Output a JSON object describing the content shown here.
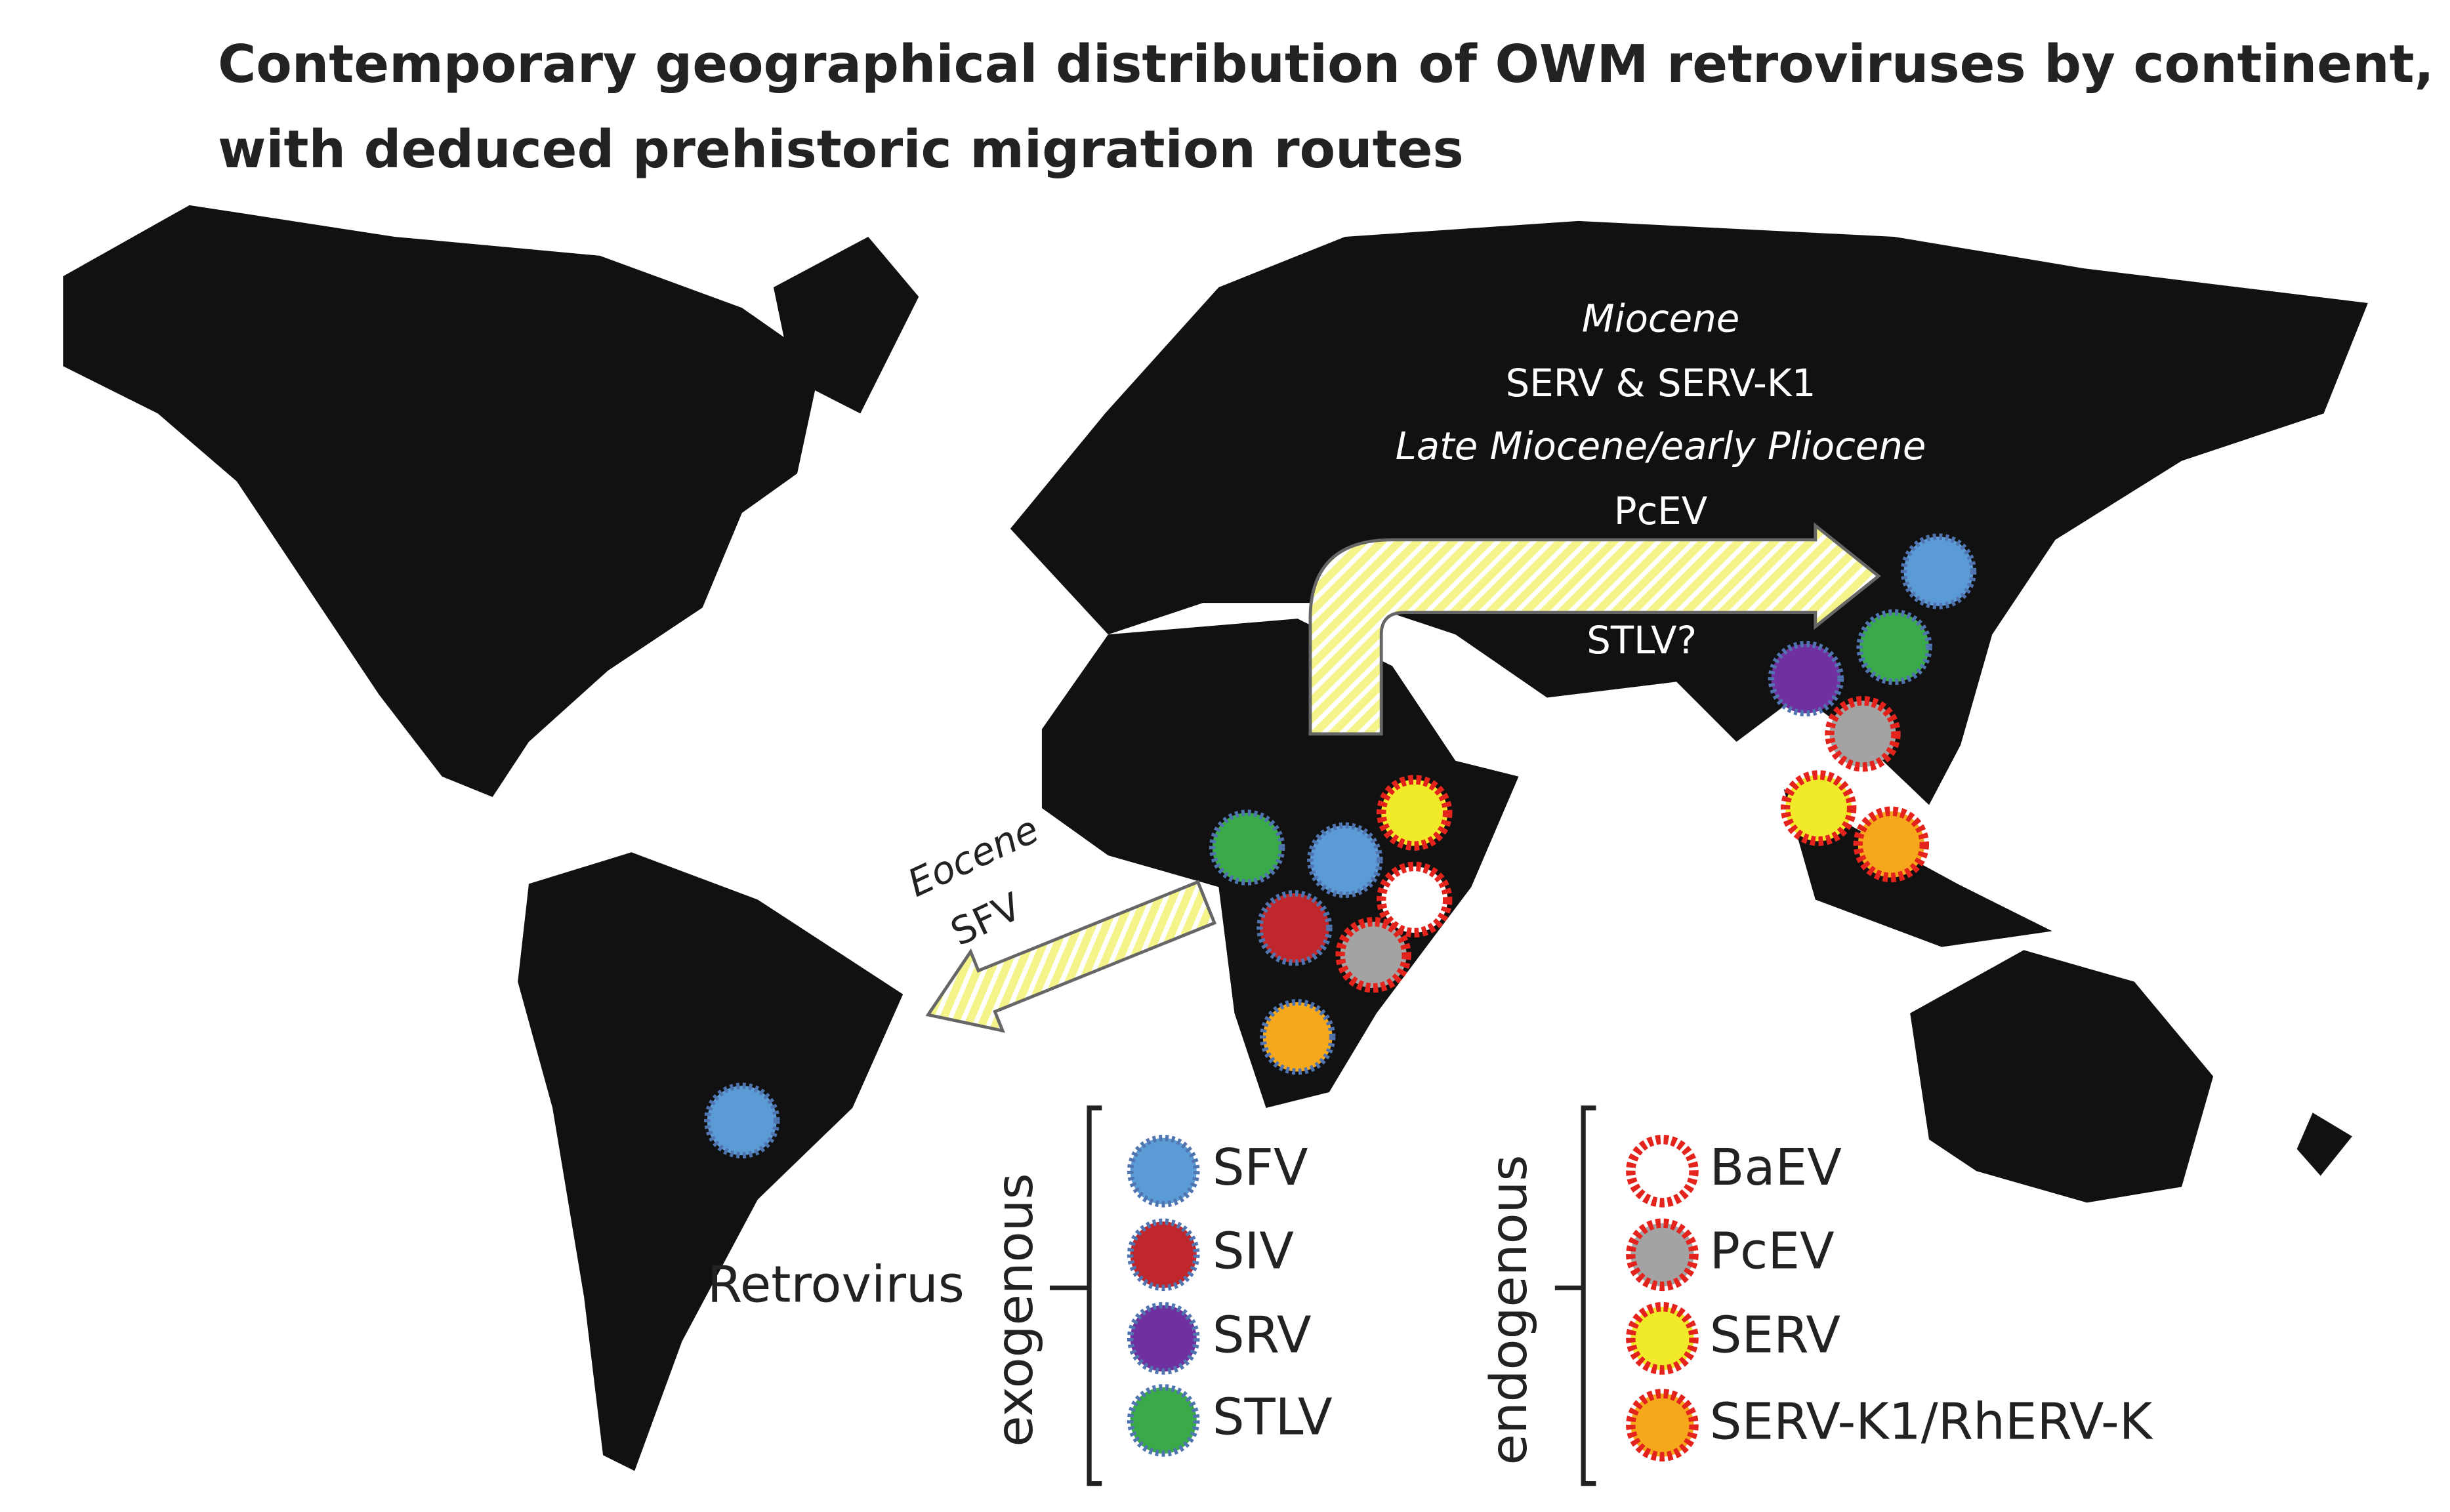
{
  "title": [
    "Contemporary geographical distribution of OWM retroviruses by continent,",
    "with deduced prehistoric migration routes"
  ],
  "routes": {
    "asia": [
      "Miocene",
      "SERV & SERV-K1",
      "Late Miocene/early Pliocene",
      "PcEV",
      "STLV?"
    ],
    "america": [
      "Eocene",
      "SFV"
    ]
  },
  "legend": {
    "title": "Retrovirus",
    "groups": [
      {
        "name": "exogenous",
        "items": [
          "SFV",
          "SIV",
          "SRV",
          "STLV"
        ]
      },
      {
        "name": "endogenous",
        "items": [
          "BaEV",
          "PcEV",
          "SERV",
          "SERV-K1/RhERV-K"
        ]
      }
    ]
  }
}
